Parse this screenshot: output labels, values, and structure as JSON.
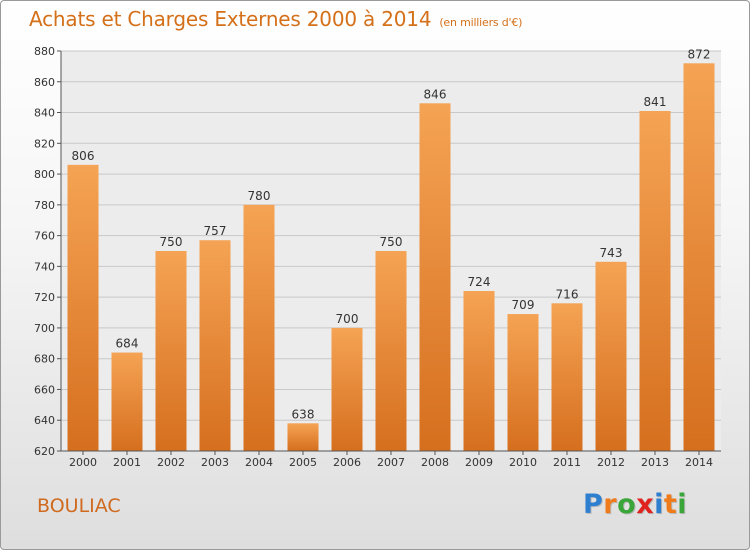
{
  "header": {
    "title": "Achats et Charges Externes 2000 à 2014",
    "unit_note": "(en milliers d'€)"
  },
  "footer": {
    "city": "BOULIAC",
    "logo_text": "Proxiti",
    "logo_letters": [
      {
        "ch": "P",
        "color": "#2f7fd0"
      },
      {
        "ch": "r",
        "color": "#ef7b1a"
      },
      {
        "ch": "o",
        "color": "#3aa63a"
      },
      {
        "ch": "x",
        "color": "#e0231f"
      },
      {
        "ch": "i",
        "color": "#2f7fd0"
      },
      {
        "ch": "t",
        "color": "#ef7b1a"
      },
      {
        "ch": "i",
        "color": "#3aa63a"
      }
    ]
  },
  "colors": {
    "accent": "#d4701a",
    "bar_top": "#f5a354",
    "bar_bottom": "#d56f1e",
    "axis": "#555555",
    "grid": "#c8c8c8"
  },
  "chart_data": {
    "type": "bar",
    "title": "Achats et Charges Externes 2000 à 2014",
    "subtitle": "(en milliers d'€)",
    "xlabel": "",
    "ylabel": "",
    "categories": [
      "2000",
      "2001",
      "2002",
      "2003",
      "2004",
      "2005",
      "2006",
      "2007",
      "2008",
      "2009",
      "2010",
      "2011",
      "2012",
      "2013",
      "2014"
    ],
    "values": [
      806,
      684,
      750,
      757,
      780,
      638,
      700,
      750,
      846,
      724,
      709,
      716,
      743,
      841,
      872
    ],
    "ylim": [
      620,
      880
    ],
    "yticks": [
      620,
      640,
      660,
      680,
      700,
      720,
      740,
      760,
      780,
      800,
      820,
      840,
      860,
      880
    ],
    "grid": true,
    "data_labels": true
  }
}
